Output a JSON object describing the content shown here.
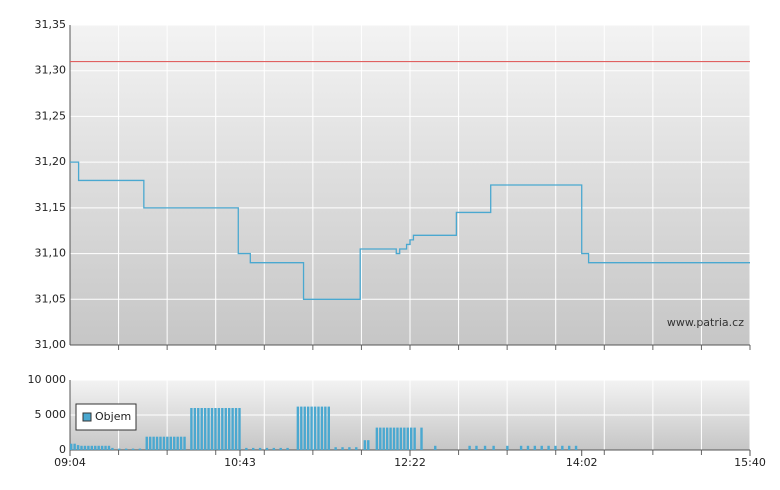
{
  "chart_data": [
    {
      "type": "line",
      "annotation": "www.patria.cz",
      "xlim": [
        544,
        940
      ],
      "ylim": [
        31.0,
        31.35
      ],
      "yticks": [
        {
          "value": 31.0,
          "label": "31,00"
        },
        {
          "value": 31.05,
          "label": "31,05"
        },
        {
          "value": 31.1,
          "label": "31,10"
        },
        {
          "value": 31.15,
          "label": "31,15"
        },
        {
          "value": 31.2,
          "label": "31,20"
        },
        {
          "value": 31.25,
          "label": "31,25"
        },
        {
          "value": 31.3,
          "label": "31,30"
        },
        {
          "value": 31.35,
          "label": "31,35"
        }
      ],
      "grid": true,
      "reference_lines": [
        {
          "value": 31.31,
          "color": "#e06060"
        }
      ],
      "x": [
        544,
        549,
        549,
        587,
        587,
        642,
        642,
        649,
        649,
        680,
        680,
        713,
        713,
        734,
        734,
        736,
        736,
        740,
        740,
        742,
        742,
        744,
        744,
        769,
        769,
        789,
        789,
        842,
        842,
        846,
        846,
        940
      ],
      "series": [
        {
          "color": "#4aa8d0",
          "values": [
            31.2,
            31.2,
            31.18,
            31.18,
            31.15,
            31.15,
            31.1,
            31.1,
            31.09,
            31.09,
            31.05,
            31.05,
            31.105,
            31.105,
            31.1,
            31.1,
            31.105,
            31.105,
            31.11,
            31.11,
            31.115,
            31.115,
            31.12,
            31.12,
            31.145,
            31.145,
            31.175,
            31.175,
            31.1,
            31.1,
            31.09,
            31.09
          ]
        }
      ]
    },
    {
      "type": "bar",
      "xlim": [
        544,
        940
      ],
      "ylim": [
        0,
        10000
      ],
      "yticks": [
        0,
        {
          "value": 5000,
          "label": "5 000"
        },
        {
          "value": 10000,
          "label": "10 000"
        }
      ],
      "xticks": [
        {
          "value": 544,
          "label": "09:04"
        },
        {
          "value": 643,
          "label": "10:43"
        },
        {
          "value": 742,
          "label": "12:22"
        },
        {
          "value": 842,
          "label": "14:02"
        },
        {
          "value": 940,
          "label": "15:40"
        }
      ],
      "grid": true,
      "legend": "top-left",
      "x": [
        544,
        546,
        548,
        550,
        552,
        554,
        556,
        558,
        560,
        562,
        564,
        566,
        568,
        572,
        576,
        580,
        584,
        588,
        590,
        592,
        594,
        596,
        598,
        600,
        602,
        604,
        606,
        608,
        610,
        614,
        616,
        618,
        620,
        622,
        624,
        626,
        628,
        630,
        632,
        634,
        636,
        638,
        640,
        642,
        646,
        650,
        654,
        658,
        662,
        666,
        670,
        676,
        678,
        680,
        682,
        684,
        686,
        688,
        690,
        692,
        694,
        698,
        702,
        706,
        710,
        715,
        717,
        722,
        724,
        726,
        728,
        730,
        732,
        734,
        736,
        738,
        740,
        742,
        744,
        748,
        756,
        776,
        780,
        785,
        790,
        798,
        806,
        810,
        814,
        818,
        822,
        826,
        830,
        834,
        838
      ],
      "series": [
        {
          "name": "Objem",
          "color": "#4aa8d0",
          "values": [
            900,
            900,
            700,
            600,
            600,
            600,
            600,
            600,
            600,
            600,
            600,
            600,
            300,
            200,
            200,
            200,
            200,
            1900,
            1900,
            1900,
            1900,
            1900,
            1900,
            1900,
            1900,
            1900,
            1900,
            1900,
            1900,
            6000,
            6000,
            6000,
            6000,
            6000,
            6000,
            6000,
            6000,
            6000,
            6000,
            6000,
            6000,
            6000,
            6000,
            6000,
            300,
            300,
            300,
            300,
            300,
            300,
            300,
            6200,
            6200,
            6200,
            6200,
            6200,
            6200,
            6200,
            6200,
            6200,
            6200,
            400,
            400,
            400,
            400,
            1400,
            1400,
            3200,
            3200,
            3200,
            3200,
            3200,
            3200,
            3200,
            3200,
            3200,
            3200,
            3200,
            3200,
            3200,
            600,
            600,
            600,
            600,
            600,
            600,
            600,
            600,
            600,
            600,
            600,
            600,
            600,
            600,
            600
          ]
        }
      ]
    }
  ]
}
